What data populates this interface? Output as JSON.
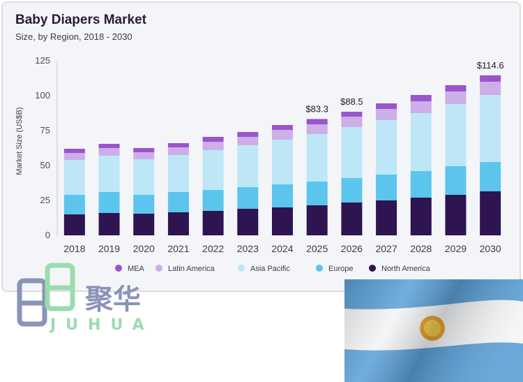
{
  "title": "Baby Diapers Market",
  "subtitle": "Size, by Region, 2018 - 2030",
  "chart_data": {
    "type": "bar",
    "stacked": true,
    "ylabel": "Market Size (US$B)",
    "ylim": [
      0,
      125
    ],
    "yticks": [
      0,
      25,
      50,
      75,
      100,
      125
    ],
    "grid": false,
    "legend_position": "bottom",
    "categories": [
      "2018",
      "2019",
      "2020",
      "2021",
      "2022",
      "2023",
      "2024",
      "2025",
      "2026",
      "2027",
      "2028",
      "2029",
      "2030"
    ],
    "series": [
      {
        "name": "North America",
        "color": "#2e1450",
        "values": [
          15,
          16,
          15.5,
          16.5,
          17.5,
          19,
          20,
          21.5,
          23.5,
          25,
          27,
          29,
          31.5
        ]
      },
      {
        "name": "Europe",
        "color": "#5bc5ee",
        "values": [
          14,
          15,
          13.5,
          14.5,
          15,
          15.5,
          16.5,
          17,
          17.5,
          18.5,
          19,
          20.5,
          21
        ]
      },
      {
        "name": "Asia Pacific",
        "color": "#bde7f6",
        "values": [
          25,
          26,
          25.5,
          26.5,
          28.5,
          30,
          32,
          34,
          36.5,
          39,
          41.5,
          44.5,
          48
        ]
      },
      {
        "name": "Latin America",
        "color": "#ccaee8",
        "values": [
          5,
          5.5,
          5,
          5.5,
          6,
          6,
          7,
          7,
          7.5,
          8,
          8.5,
          9,
          9.5
        ]
      },
      {
        "name": "MEA",
        "color": "#9955cc",
        "values": [
          3,
          3,
          3,
          3,
          3.5,
          3.5,
          3.5,
          3.8,
          3.5,
          4,
          4.5,
          4.5,
          4.6
        ]
      }
    ],
    "total_labels": [
      {
        "category": "2025",
        "text": "$83.3"
      },
      {
        "category": "2026",
        "text": "$88.5"
      },
      {
        "category": "2030",
        "text": "$114.6"
      }
    ],
    "legend_order": [
      "MEA",
      "Latin America",
      "Asia Pacific",
      "Europe",
      "North America"
    ]
  },
  "logo": {
    "chinese": "聚华",
    "latin": "JUHUA"
  }
}
